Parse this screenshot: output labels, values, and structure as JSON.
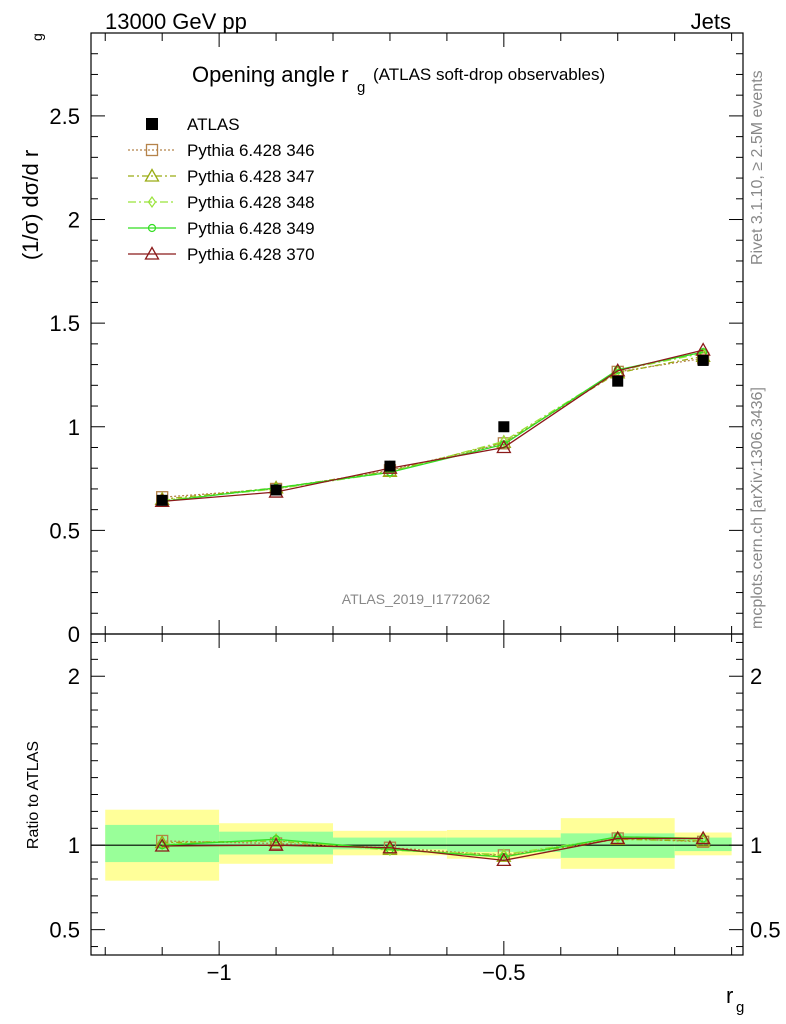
{
  "header": {
    "left": "13000 GeV pp",
    "right": "Jets"
  },
  "title": {
    "main": "Opening angle r",
    "sub": "g",
    "paren": "(ATLAS soft-drop observables)"
  },
  "side_labels": {
    "rivet": "Rivet 3.1.10, ≥ 2.5M events",
    "mcplots": "mcplots.cern.ch [arXiv:1306.3436]"
  },
  "watermark": "ATLAS_2019_I1772062",
  "axes": {
    "ylabel_main": "(1/σ) dσ/d r",
    "ylabel_main_sub": "g",
    "ylabel_ratio": "Ratio to ATLAS",
    "xlabel": "r",
    "xlabel_sub": "g"
  },
  "colors": {
    "data": "#000000",
    "s346": "#b5834a",
    "s347": "#9aac14",
    "s348": "#99e33a",
    "s349": "#33dd22",
    "s370": "#8b1a1a",
    "band_outer": "#ffff99",
    "band_inner": "#99ff99"
  },
  "chart_data": {
    "type": "line",
    "x": [
      -1.1,
      -0.9,
      -0.7,
      -0.5,
      -0.3,
      -0.15
    ],
    "bin_edges": [
      -1.2,
      -1.0,
      -0.8,
      -0.6,
      -0.4,
      -0.2,
      -0.1
    ],
    "xlim": [
      -1.225,
      -0.08
    ],
    "xticks": [
      -1,
      -0.5
    ],
    "xtick_labels": [
      "−1",
      "−0.5"
    ],
    "main": {
      "ylim": [
        0,
        2.9
      ],
      "yticks": [
        0,
        0.5,
        1,
        1.5,
        2,
        2.5
      ],
      "ytick_labels": [
        "0",
        "0.5",
        "1",
        "1.5",
        "2",
        "2.5"
      ]
    },
    "ratio": {
      "ylim": [
        0.35,
        2.25
      ],
      "yticks": [
        0.5,
        1,
        2
      ],
      "ytick_labels": [
        "0.5",
        "1",
        "2"
      ]
    },
    "data_series": {
      "name": "ATLAS",
      "values": [
        0.645,
        0.695,
        0.81,
        1.0,
        1.22,
        1.32
      ]
    },
    "series": [
      {
        "name": "Pythia 6.428 346",
        "key": "s346",
        "marker": "square",
        "values": [
          0.66,
          0.7,
          0.79,
          0.92,
          1.265,
          1.33
        ],
        "ratio": [
          1.025,
          1.01,
          0.985,
          0.94,
          1.04,
          1.02
        ]
      },
      {
        "name": "Pythia 6.428 347",
        "key": "s347",
        "marker": "triangle",
        "values": [
          0.65,
          0.705,
          0.785,
          0.925,
          1.26,
          1.34
        ],
        "ratio": [
          1.015,
          1.025,
          0.975,
          0.935,
          1.035,
          1.025
        ]
      },
      {
        "name": "Pythia 6.428 348",
        "key": "s348",
        "marker": "diamond",
        "values": [
          0.645,
          0.7,
          0.78,
          0.93,
          1.27,
          1.355
        ],
        "ratio": [
          1.005,
          1.03,
          0.97,
          0.945,
          1.045,
          1.035
        ]
      },
      {
        "name": "Pythia 6.428 349",
        "key": "s349",
        "marker": "circle",
        "values": [
          0.64,
          0.705,
          0.78,
          0.915,
          1.275,
          1.36
        ],
        "ratio": [
          1.0,
          1.035,
          0.975,
          0.93,
          1.05,
          1.04
        ]
      },
      {
        "name": "Pythia 6.428 370",
        "key": "s370",
        "marker": "triangle",
        "values": [
          0.64,
          0.685,
          0.8,
          0.9,
          1.27,
          1.37
        ],
        "ratio": [
          0.995,
          1.0,
          0.985,
          0.91,
          1.04,
          1.04
        ]
      }
    ],
    "bands": {
      "outer_lo": [
        0.79,
        0.89,
        0.94,
        0.92,
        0.86,
        0.94
      ],
      "outer_hi": [
        1.21,
        1.13,
        1.085,
        1.09,
        1.16,
        1.075
      ],
      "inner_lo": [
        0.9,
        0.945,
        0.975,
        0.96,
        0.925,
        0.965
      ],
      "inner_hi": [
        1.12,
        1.08,
        1.045,
        1.045,
        1.07,
        1.045
      ]
    }
  }
}
